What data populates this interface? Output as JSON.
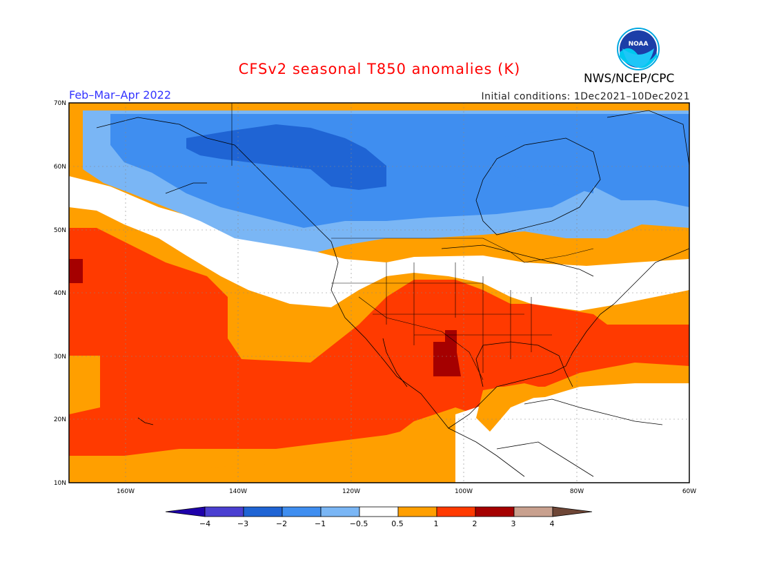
{
  "title": "CFSv2 seasonal T850 anomalies (K)",
  "agency": "NWS/NCEP/CPC",
  "logo_text": "NOAA",
  "period": "Feb–Mar–Apr 2022",
  "initial_conditions": "Initial conditions: 1Dec2021–10Dec2021",
  "colors": {
    "title": "#ff0000",
    "period": "#3333ff",
    "scale": [
      "#1e00aa",
      "#4a3fd1",
      "#1f64d4",
      "#3f8ef0",
      "#7ab6f5",
      "#ffffff",
      "#ff9f00",
      "#ff3a00",
      "#a50000",
      "#c8a08e",
      "#6e4636"
    ]
  },
  "axes": {
    "lat_labels": [
      "70N",
      "60N",
      "50N",
      "40N",
      "30N",
      "20N",
      "10N"
    ],
    "lon_labels": [
      "160W",
      "140W",
      "120W",
      "100W",
      "80W",
      "60W"
    ]
  },
  "colorbar": {
    "labels": [
      "−4",
      "−3",
      "−2",
      "−1",
      "−0.5",
      "0.5",
      "1",
      "2",
      "3",
      "4"
    ]
  }
}
